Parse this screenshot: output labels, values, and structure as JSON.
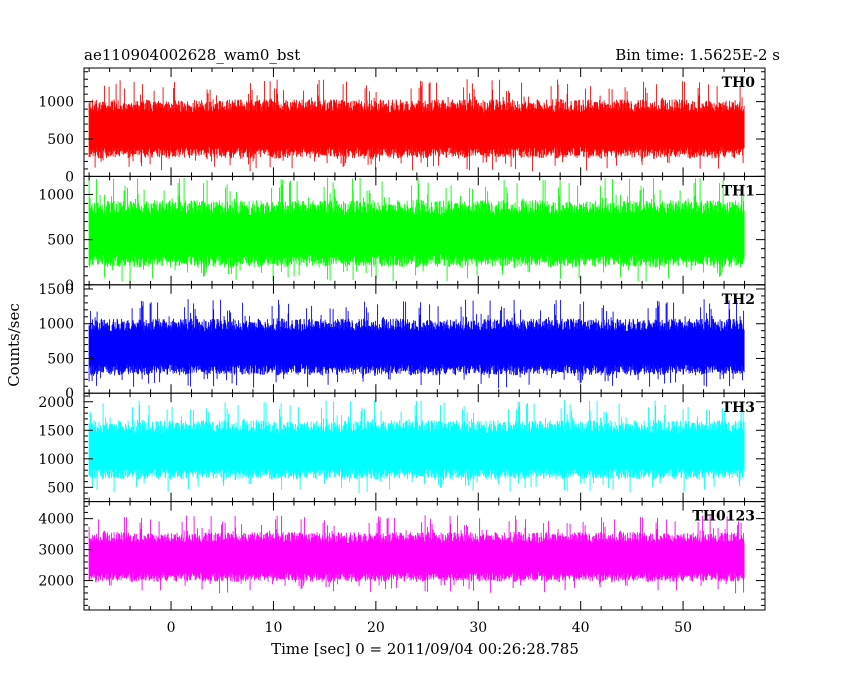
{
  "chart_data": {
    "type": "line",
    "title": "ae110904002628_wam0_bst",
    "subtitle": "Bin time: 1.5625E-2 s",
    "xlabel": "Time [sec] 0 = 2011/09/04 00:26:28.785",
    "ylabel": "Counts/sec",
    "xlim": [
      -8.5,
      58
    ],
    "x_ticks": [
      0,
      10,
      20,
      30,
      40,
      50
    ],
    "x_tick_labels": [
      "0",
      "10",
      "20",
      "30",
      "40",
      "50"
    ],
    "data_range": [
      -8,
      56
    ],
    "grid": false,
    "legend": "none",
    "panels": [
      {
        "name": "TH0",
        "color": "#ff0000",
        "ylim": [
          0,
          1450
        ],
        "y_ticks": [
          0,
          500,
          1000
        ],
        "y_tick_labels": [
          "0",
          "500",
          "1000"
        ],
        "mean": 630,
        "spread": 320,
        "min": 60,
        "max": 1440
      },
      {
        "name": "TH1",
        "color": "#00ff00",
        "ylim": [
          0,
          1200
        ],
        "y_ticks": [
          0,
          500,
          1000
        ],
        "y_tick_labels": [
          "0",
          "500",
          "1000"
        ],
        "mean": 560,
        "spread": 300,
        "min": 40,
        "max": 1190
      },
      {
        "name": "TH2",
        "color": "#0000ff",
        "ylim": [
          0,
          1560
        ],
        "y_ticks": [
          0,
          500,
          1000,
          1500
        ],
        "y_tick_labels": [
          "0",
          "500",
          "1000",
          "1500"
        ],
        "mean": 660,
        "spread": 330,
        "min": 40,
        "max": 1550
      },
      {
        "name": "TH3",
        "color": "#00ffff",
        "ylim": [
          250,
          2150
        ],
        "y_ticks": [
          500,
          1000,
          1500,
          2000
        ],
        "y_tick_labels": [
          "500",
          "1000",
          "1500",
          "2000"
        ],
        "mean": 1150,
        "spread": 420,
        "min": 260,
        "max": 2140
      },
      {
        "name": "TH0123",
        "color": "#ff00ff",
        "ylim": [
          1050,
          4550
        ],
        "y_ticks": [
          2000,
          3000,
          4000
        ],
        "y_tick_labels": [
          "2000",
          "3000",
          "4000"
        ],
        "mean": 2750,
        "spread": 650,
        "min": 1060,
        "max": 4540
      }
    ]
  }
}
